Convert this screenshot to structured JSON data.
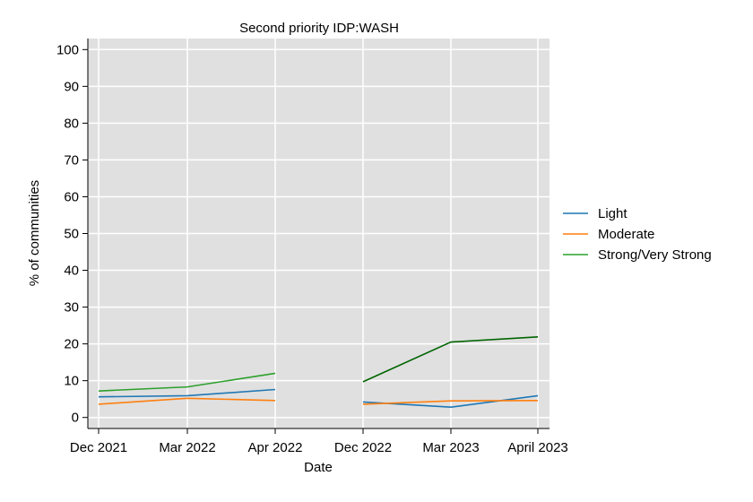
{
  "chart_data": {
    "type": "line",
    "title": "Second priority IDP:WASH",
    "xlabel": "Date",
    "ylabel": "% of communities",
    "categories": [
      "Dec 2021",
      "Mar 2022",
      "Apr 2022",
      "Dec 2022",
      "Mar 2023",
      "April 2023"
    ],
    "yticks": [
      0,
      10,
      20,
      30,
      40,
      50,
      60,
      70,
      80,
      90,
      100
    ],
    "ylim": [
      -3,
      103
    ],
    "grid": true,
    "legend_position": "right",
    "series": [
      {
        "name": "Light",
        "color": "#1f77b4",
        "values": [
          5.6,
          5.9,
          7.6,
          4.2,
          2.8,
          5.9
        ]
      },
      {
        "name": "Moderate",
        "color": "#ff7f0e",
        "values": [
          3.6,
          5.2,
          4.6,
          3.6,
          4.5,
          4.6
        ]
      },
      {
        "name": "Strong/Very Strong",
        "color": "#2ca02c",
        "values": [
          7.2,
          8.3,
          12.0,
          9.7,
          20.5,
          21.9
        ]
      }
    ],
    "segments": [
      [
        0,
        2
      ],
      [
        3,
        5
      ]
    ],
    "segment_colors": {
      "Strong/Very Strong": [
        "#2ca02c",
        "#006400"
      ]
    }
  }
}
